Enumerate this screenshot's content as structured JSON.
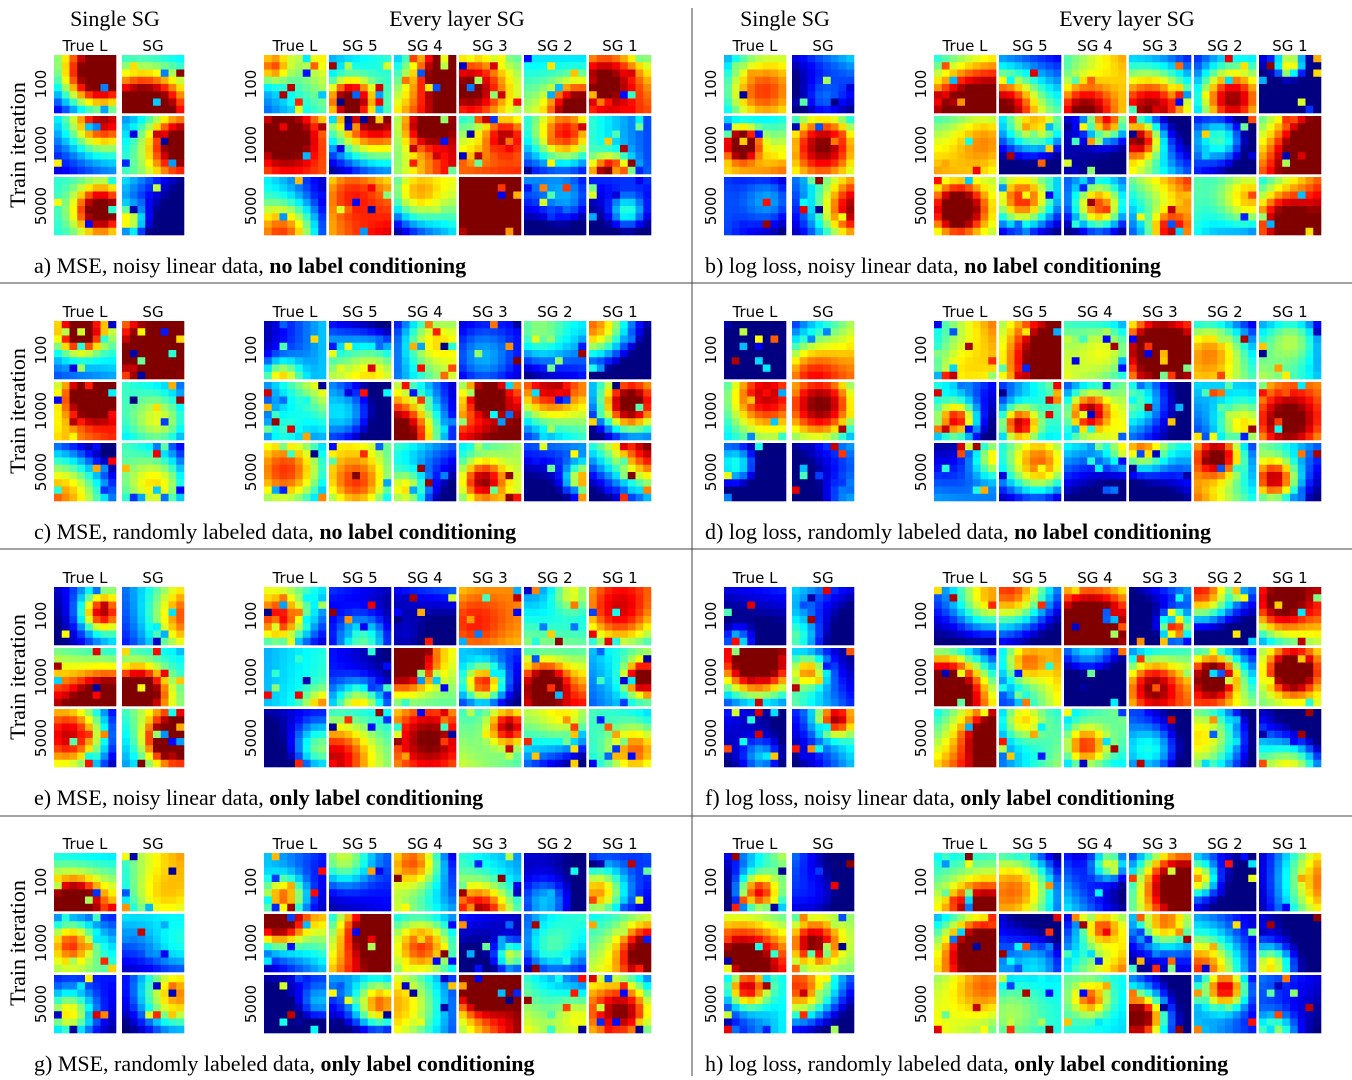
{
  "panels": [
    {
      "group_titles": [
        "Single SG",
        "Every layer SG"
      ],
      "single_cols": [
        "True L",
        "SG"
      ],
      "every_cols": [
        "True L",
        "SG 5",
        "SG 4",
        "SG 3",
        "SG 2",
        "SG 1"
      ],
      "rows": [
        "100",
        "1000",
        "5000"
      ],
      "y_label": "Train iteration",
      "caption": "a) MSE, noisy linear data, ",
      "caption_bold": "no label conditioning"
    },
    {
      "group_titles": [
        "Single SG",
        "Every layer SG"
      ],
      "single_cols": [
        "True L",
        "SG"
      ],
      "every_cols": [
        "True L",
        "SG 5",
        "SG 4",
        "SG 3",
        "SG 2",
        "SG 1"
      ],
      "rows": [
        "100",
        "1000",
        "5000"
      ],
      "caption": "b) log loss, noisy linear data, ",
      "caption_bold": "no label conditioning"
    },
    {
      "single_cols": [
        "True L",
        "SG"
      ],
      "every_cols": [
        "True L",
        "SG 5",
        "SG 4",
        "SG 3",
        "SG 2",
        "SG 1"
      ],
      "rows": [
        "100",
        "1000",
        "5000"
      ],
      "y_label": "Train iteration",
      "caption": "c) MSE, randomly labeled data, ",
      "caption_bold": "no label conditioning"
    },
    {
      "single_cols": [
        "True L",
        "SG"
      ],
      "every_cols": [
        "True L",
        "SG 5",
        "SG 4",
        "SG 3",
        "SG 2",
        "SG 1"
      ],
      "rows": [
        "100",
        "1000",
        "5000"
      ],
      "caption": "d) log loss, randomly labeled data, ",
      "caption_bold": "no label conditioning"
    },
    {
      "single_cols": [
        "True L",
        "SG"
      ],
      "every_cols": [
        "True L",
        "SG 5",
        "SG 4",
        "SG 3",
        "SG 2",
        "SG 1"
      ],
      "rows": [
        "100",
        "1000",
        "5000"
      ],
      "y_label": "Train iteration",
      "caption": "e) MSE, noisy linear data, ",
      "caption_bold": "only label conditioning"
    },
    {
      "single_cols": [
        "True L",
        "SG"
      ],
      "every_cols": [
        "True L",
        "SG 5",
        "SG 4",
        "SG 3",
        "SG 2",
        "SG 1"
      ],
      "rows": [
        "100",
        "1000",
        "5000"
      ],
      "caption": "f) log loss, noisy linear data, ",
      "caption_bold": "only label conditioning"
    },
    {
      "single_cols": [
        "True L",
        "SG"
      ],
      "every_cols": [
        "True L",
        "SG 5",
        "SG 4",
        "SG 3",
        "SG 2",
        "SG 1"
      ],
      "rows": [
        "100",
        "1000",
        "5000"
      ],
      "y_label": "Train iteration",
      "caption": "g) MSE, randomly labeled data, ",
      "caption_bold": "only label conditioning"
    },
    {
      "single_cols": [
        "True L",
        "SG"
      ],
      "every_cols": [
        "True L",
        "SG 5",
        "SG 4",
        "SG 3",
        "SG 2",
        "SG 1"
      ],
      "rows": [
        "100",
        "1000",
        "5000"
      ],
      "caption": "h) log loss, randomly labeled data, ",
      "caption_bold": "only label conditioning"
    }
  ]
}
